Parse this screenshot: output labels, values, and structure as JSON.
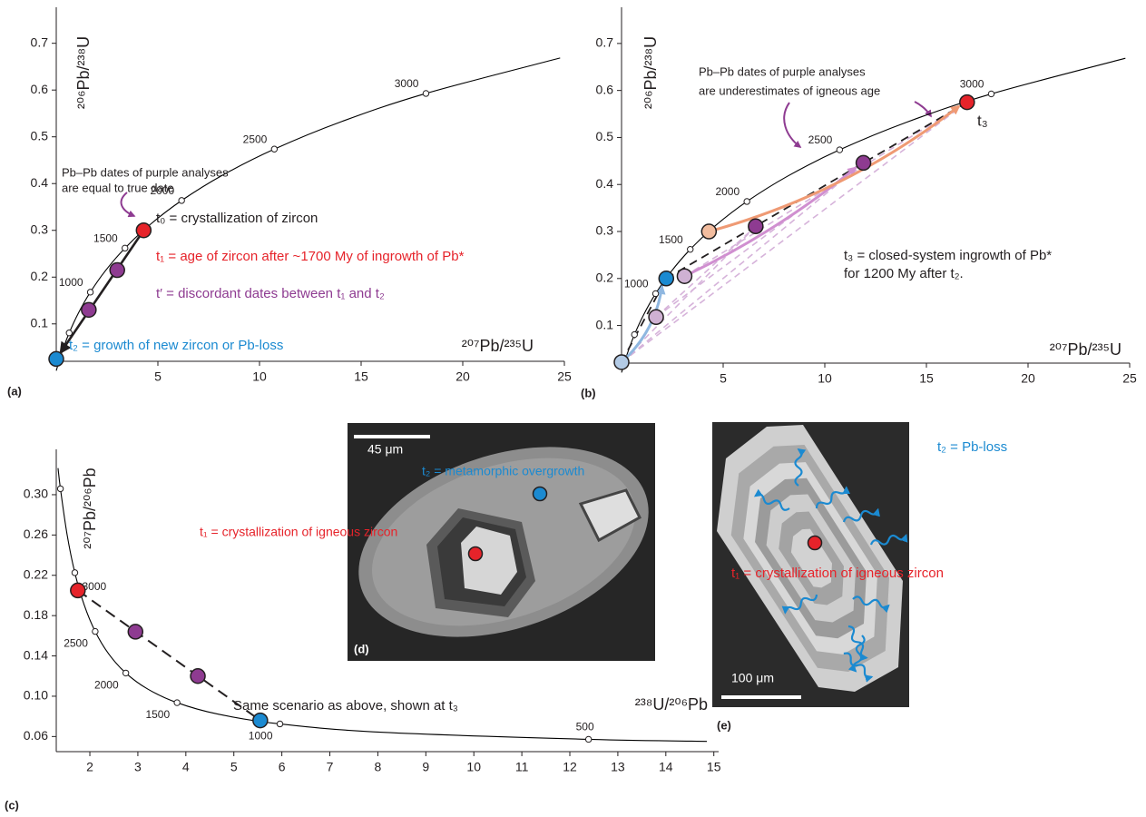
{
  "chart_data": [
    {
      "type": "scatter",
      "panel_label": "(a)",
      "y_label": "²⁰⁶Pb/²³⁸U",
      "x_label": "²⁰⁷Pb/²³⁵U",
      "xlim": [
        0,
        25
      ],
      "xticks": [
        5,
        10,
        15,
        20,
        25
      ],
      "ylim": [
        0.02,
        0.777
      ],
      "yticks": [
        0.1,
        0.2,
        0.3,
        0.4,
        0.5,
        0.6,
        0.7
      ],
      "curve": {
        "color": "#000000",
        "x": [
          0,
          0.279,
          0.636,
          1.093,
          1.677,
          2.425,
          3.381,
          4.604,
          6.168,
          8.17,
          10.73,
          14.0,
          18.19,
          24.79
        ],
        "y": [
          0,
          0.0395,
          0.0807,
          0.1234,
          0.1678,
          0.214,
          0.262,
          0.3119,
          0.3638,
          0.4177,
          0.4737,
          0.532,
          0.5927,
          0.6685
        ]
      },
      "age_markers": {
        "x": [
          0.636,
          1.677,
          3.381,
          6.168,
          10.73,
          18.19
        ],
        "y": [
          0.0807,
          0.1678,
          0.262,
          0.3638,
          0.4737,
          0.5927
        ],
        "labels": [
          null,
          1000,
          1500,
          2000,
          2500,
          3000
        ]
      },
      "points": {
        "x": [
          0,
          1.6,
          3.0,
          4.3
        ],
        "y": [
          0.025,
          0.13,
          0.215,
          0.3
        ],
        "colors": [
          "#1b8ad1",
          "#8e3b91",
          "#8e3b91",
          "#e6232a"
        ]
      },
      "annotations": [
        {
          "text": "Pb–Pb dates of purple analyses",
          "color": "#231f20"
        },
        {
          "text": "are equal to true date",
          "color": "#231f20"
        },
        {
          "text": "t₀ = crystallization of zircon",
          "color": "#231f20"
        },
        {
          "text": "t₁ = age of zircon after ~1700 My of ingrowth of Pb*",
          "color": "#e6232a"
        },
        {
          "text": "t′ = discordant dates between t₁ and t₂",
          "color": "#8e3b91"
        },
        {
          "text": "t₂ = growth of new zircon or Pb-loss",
          "color": "#1b8ad1"
        }
      ]
    },
    {
      "type": "scatter",
      "panel_label": "(b)",
      "y_label": "²⁰⁶Pb/²³⁸U",
      "x_label": "²⁰⁷Pb/²³⁵U",
      "xlim": [
        0,
        25
      ],
      "xticks": [
        5,
        10,
        15,
        20,
        25
      ],
      "ylim": [
        0.02,
        0.777
      ],
      "yticks": [
        0.1,
        0.2,
        0.3,
        0.4,
        0.5,
        0.6,
        0.7
      ],
      "curve": {
        "color": "#000000",
        "x": [
          0,
          0.279,
          0.636,
          1.093,
          1.677,
          2.425,
          3.381,
          4.604,
          6.168,
          8.17,
          10.73,
          14.0,
          18.19,
          24.79
        ],
        "y": [
          0,
          0.0395,
          0.0807,
          0.1234,
          0.1678,
          0.214,
          0.262,
          0.3119,
          0.3638,
          0.4177,
          0.4737,
          0.532,
          0.5927,
          0.6685
        ]
      },
      "age_markers": {
        "x": [
          0.636,
          1.677,
          3.381,
          6.168,
          10.73,
          18.19
        ],
        "y": [
          0.0807,
          0.1678,
          0.262,
          0.3638,
          0.4737,
          0.5927
        ],
        "labels": [
          null,
          1000,
          1500,
          2000,
          2500,
          3000
        ]
      },
      "points": {
        "x": [
          0,
          1.7,
          3.1,
          4.3,
          2.2,
          6.6,
          11.9,
          17
        ],
        "y": [
          0.022,
          0.118,
          0.205,
          0.3,
          0.2,
          0.311,
          0.446,
          0.575
        ],
        "colors": [
          "#b3cbe6",
          "#cfb1d3",
          "#cfb1d3",
          "#f3bd9f",
          "#1b8ad1",
          "#8e3b91",
          "#8e3b91",
          "#e6232a"
        ]
      },
      "annotations": [
        {
          "text": "Pb–Pb dates of purple analyses",
          "color": "#231f20"
        },
        {
          "text": "are underestimates of igneous age",
          "color": "#231f20"
        },
        {
          "text": "t₃",
          "color": "#231f20"
        },
        {
          "text": "t₃ = closed-system ingrowth of Pb*",
          "color": "#231f20"
        },
        {
          "text": "for 1200 My after t₂.",
          "color": "#231f20"
        }
      ]
    },
    {
      "type": "scatter",
      "panel_label": "(c)",
      "y_label": "²⁰⁷Pb/²⁰⁶Pb",
      "x_label": "²³⁸U/²⁰⁶Pb",
      "xlim": [
        1.3,
        15.1
      ],
      "xticks": [
        2,
        3,
        4,
        5,
        6,
        7,
        8,
        9,
        10,
        11,
        12,
        13,
        14,
        15
      ],
      "ylim": [
        0.045,
        0.345
      ],
      "yticks": [
        0.06,
        {
          "value": 0.1,
          "label": "0.10"
        },
        0.14,
        0.18,
        0.22,
        0.26,
        {
          "value": 0.3,
          "label": "0.30"
        }
      ],
      "curve": {
        "color": "#000000",
        "x": [
          1.337,
          1.387,
          1.5253,
          1.687,
          1.88,
          2.111,
          2.394,
          2.749,
          3.206,
          3.817,
          4.673,
          5.96,
          8.104,
          12.39,
          14.855
        ],
        "y": [
          0.3264,
          0.3059,
          0.2605,
          0.2226,
          0.1909,
          0.1643,
          0.1419,
          0.123,
          0.1071,
          0.0936,
          0.0822,
          0.0725,
          0.0642,
          0.0572,
          0.0552
        ]
      },
      "age_markers": {
        "x": [
          1.387,
          1.687,
          2.111,
          2.749,
          3.817,
          5.96,
          12.39
        ],
        "y": [
          0.3059,
          0.2226,
          0.1643,
          0.123,
          0.0936,
          0.0725,
          0.0572
        ],
        "labels": [
          null,
          3000,
          2500,
          2000,
          1500,
          1000,
          500
        ]
      },
      "points": {
        "x": [
          1.75,
          2.95,
          4.25,
          5.55
        ],
        "y": [
          0.205,
          0.164,
          0.12,
          0.076
        ],
        "colors": [
          "#e6232a",
          "#8e3b91",
          "#8e3b91",
          "#1b8ad1"
        ]
      },
      "annotations": [
        {
          "text": "Same scenario as above, shown at t₃",
          "color": "#231f20"
        }
      ]
    }
  ],
  "images": [
    {
      "panel_label": "(d)",
      "scale_bar": "45 μm",
      "annotations": [
        {
          "text": "t₂ = metamorphic overgrowth",
          "color": "#1b8ad1"
        },
        {
          "text": "t₁ = crystallization of igneous zircon",
          "color": "#e6232a"
        }
      ]
    },
    {
      "panel_label": "(e)",
      "scale_bar": "100 μm",
      "annotations": [
        {
          "text": "t₂ = Pb-loss",
          "color": "#1b8ad1"
        },
        {
          "text": "t₁ = crystallization of igneous zircon",
          "color": "#e6232a"
        }
      ]
    }
  ]
}
